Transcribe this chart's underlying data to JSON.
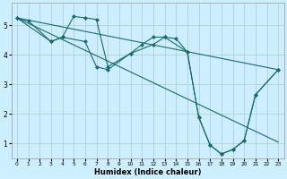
{
  "xlabel": "Humidex (Indice chaleur)",
  "background_color": "#cceeff",
  "grid_color": "#aacccc",
  "line_color": "#1a6b6b",
  "xlim": [
    -0.5,
    23.5
  ],
  "ylim": [
    0.5,
    5.75
  ],
  "xticks": [
    0,
    1,
    2,
    3,
    4,
    5,
    6,
    7,
    8,
    9,
    10,
    11,
    12,
    13,
    14,
    15,
    16,
    17,
    18,
    19,
    20,
    21,
    22,
    23
  ],
  "yticks": [
    1,
    2,
    3,
    4,
    5
  ],
  "line1_x": [
    0,
    1,
    3,
    4,
    5,
    6,
    7,
    8,
    10,
    11,
    12,
    13,
    14,
    15,
    16,
    17,
    18,
    19,
    20,
    21,
    23
  ],
  "line1_y": [
    5.25,
    5.15,
    4.45,
    4.6,
    5.3,
    5.25,
    5.2,
    3.6,
    4.05,
    4.35,
    4.6,
    4.6,
    4.55,
    4.1,
    1.9,
    0.95,
    0.65,
    0.8,
    1.1,
    2.65,
    3.5
  ],
  "line2_x": [
    0,
    23
  ],
  "line2_y": [
    5.25,
    3.5
  ],
  "line3_x": [
    0,
    3,
    4,
    6,
    7,
    8,
    10,
    12,
    13,
    15,
    16,
    17,
    18,
    19,
    20,
    21,
    23
  ],
  "line3_y": [
    5.25,
    4.45,
    4.6,
    4.45,
    3.6,
    3.5,
    4.05,
    4.35,
    4.6,
    4.1,
    1.9,
    0.95,
    0.65,
    0.8,
    1.1,
    2.65,
    3.5
  ],
  "line4_x": [
    0,
    23
  ],
  "line4_y": [
    5.25,
    1.05
  ]
}
